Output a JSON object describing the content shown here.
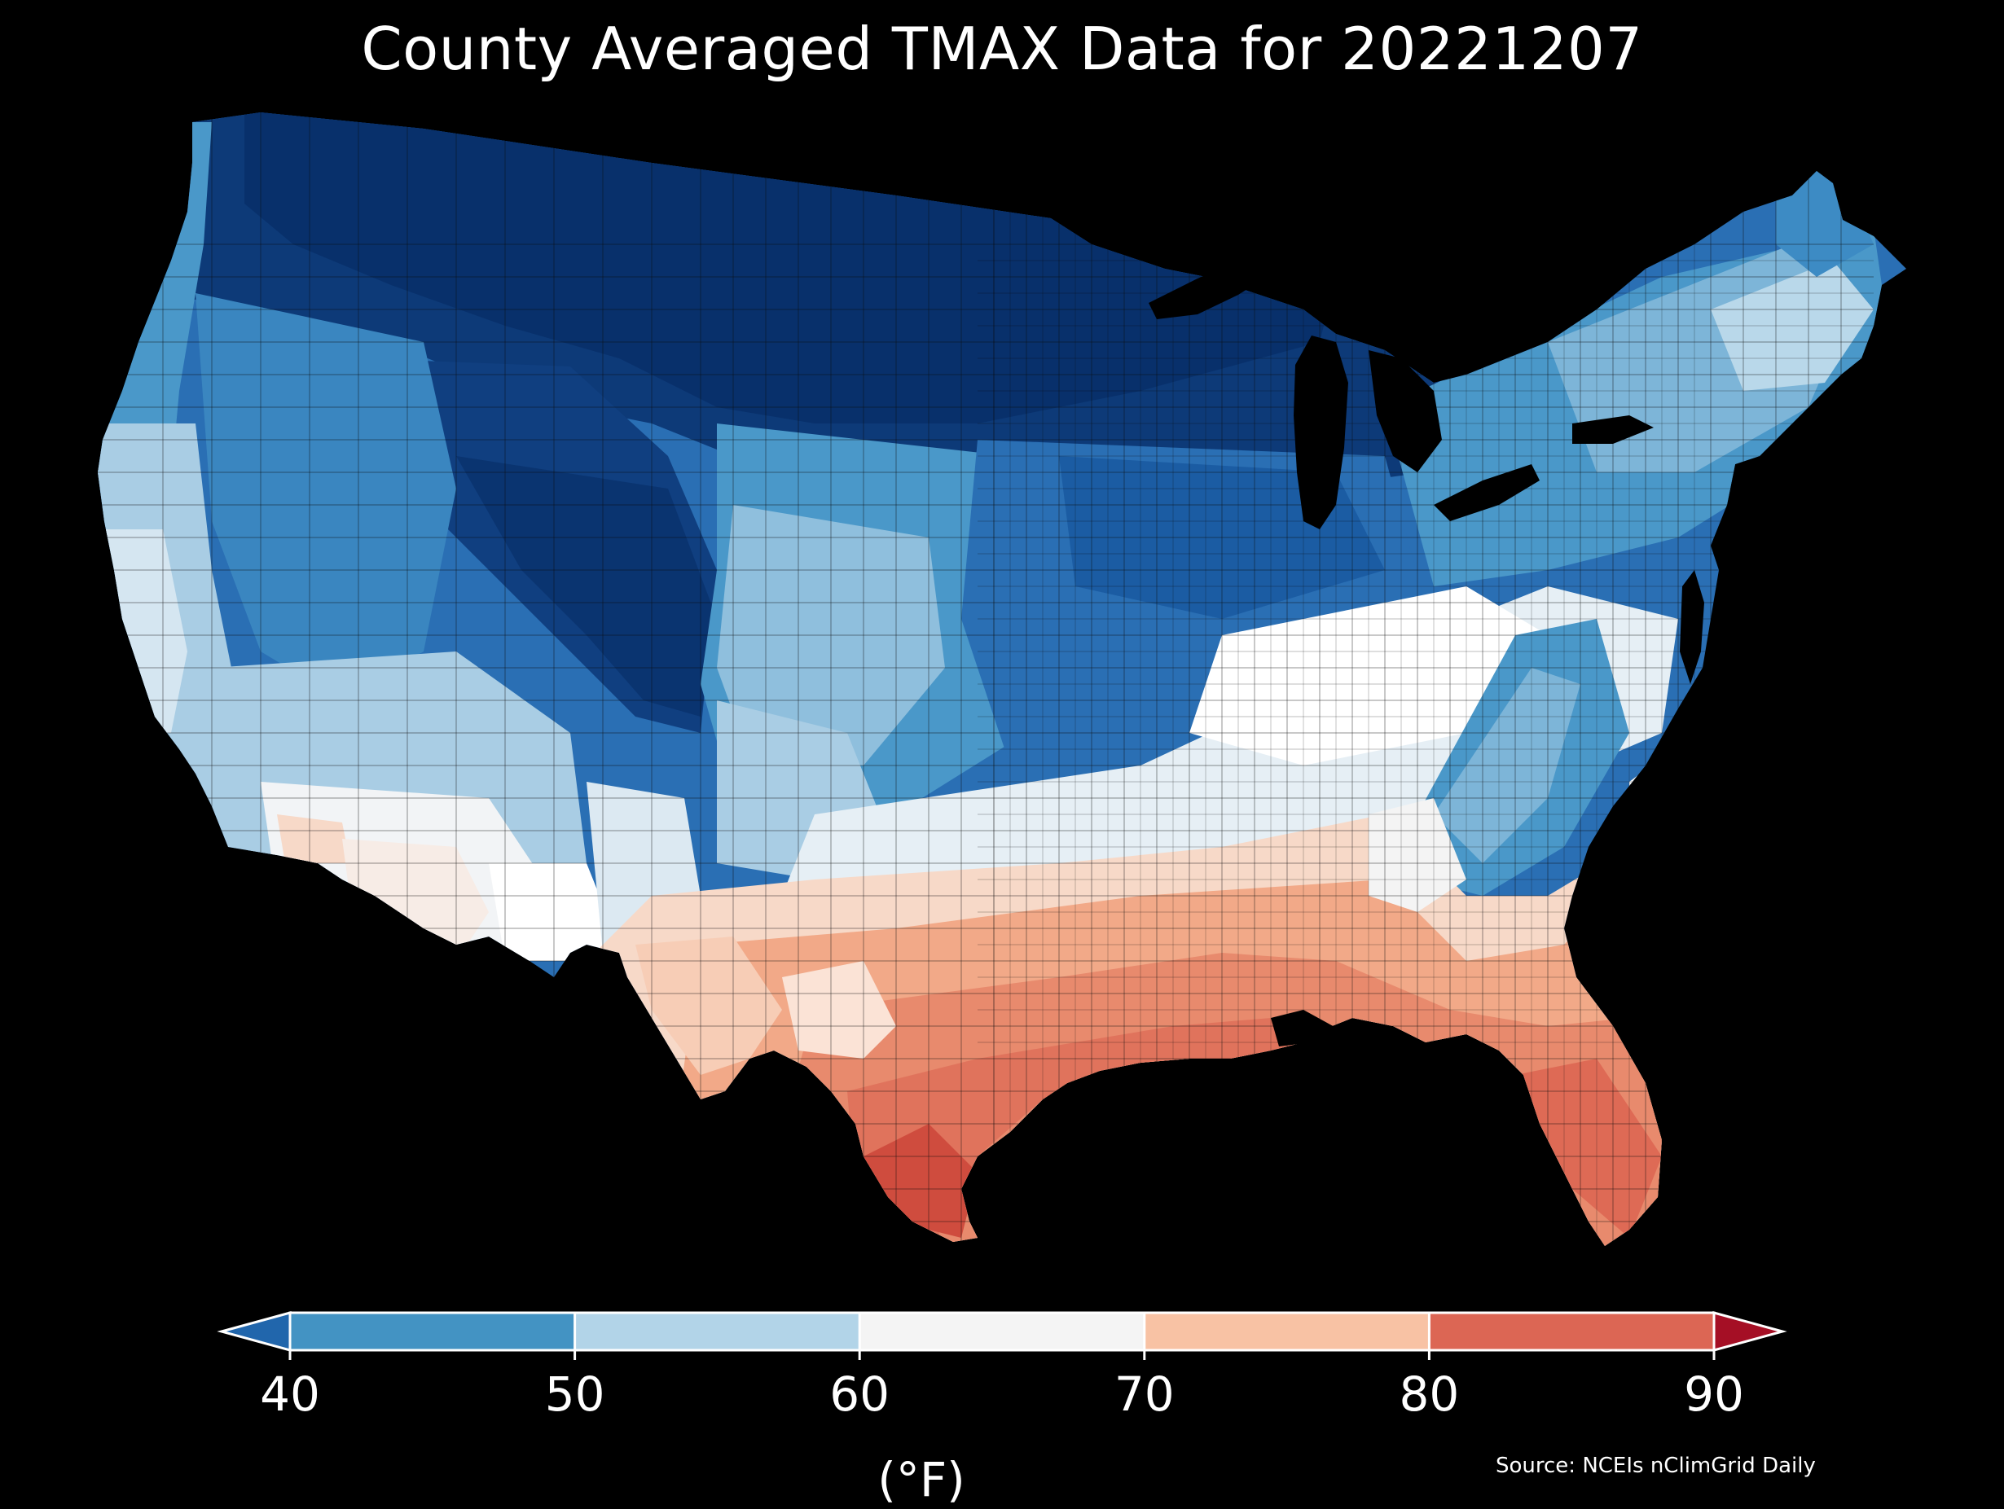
{
  "title": "County Averaged TMAX Data for 20221207",
  "colorbar": {
    "ticks": [
      "40",
      "50",
      "60",
      "70",
      "80",
      "90"
    ],
    "unit": "(°F)",
    "under_color": "#2166ac",
    "over_color": "#a50f25",
    "bins": [
      {
        "from": 40,
        "to": 50,
        "color": "#4393c3"
      },
      {
        "from": 50,
        "to": 60,
        "color": "#b2d4e8"
      },
      {
        "from": 60,
        "to": 70,
        "color": "#f4f4f4"
      },
      {
        "from": 70,
        "to": 80,
        "color": "#f8c2a4"
      },
      {
        "from": 80,
        "to": 90,
        "color": "#dc6654"
      }
    ]
  },
  "source": "Source: NCEIs nClimGrid Daily",
  "map_colors": {
    "deep_blue": "#08306b",
    "dark_blue": "#103f80",
    "mid_blue": "#2a6fb4",
    "light_blue": "#4a98c9",
    "pale_blue": "#a9cde4",
    "near_white": "#eef3f7",
    "pale_orange": "#f7d9c8",
    "light_orange": "#f2a988",
    "orange_red": "#e0735c",
    "red": "#cf4c3e"
  }
}
